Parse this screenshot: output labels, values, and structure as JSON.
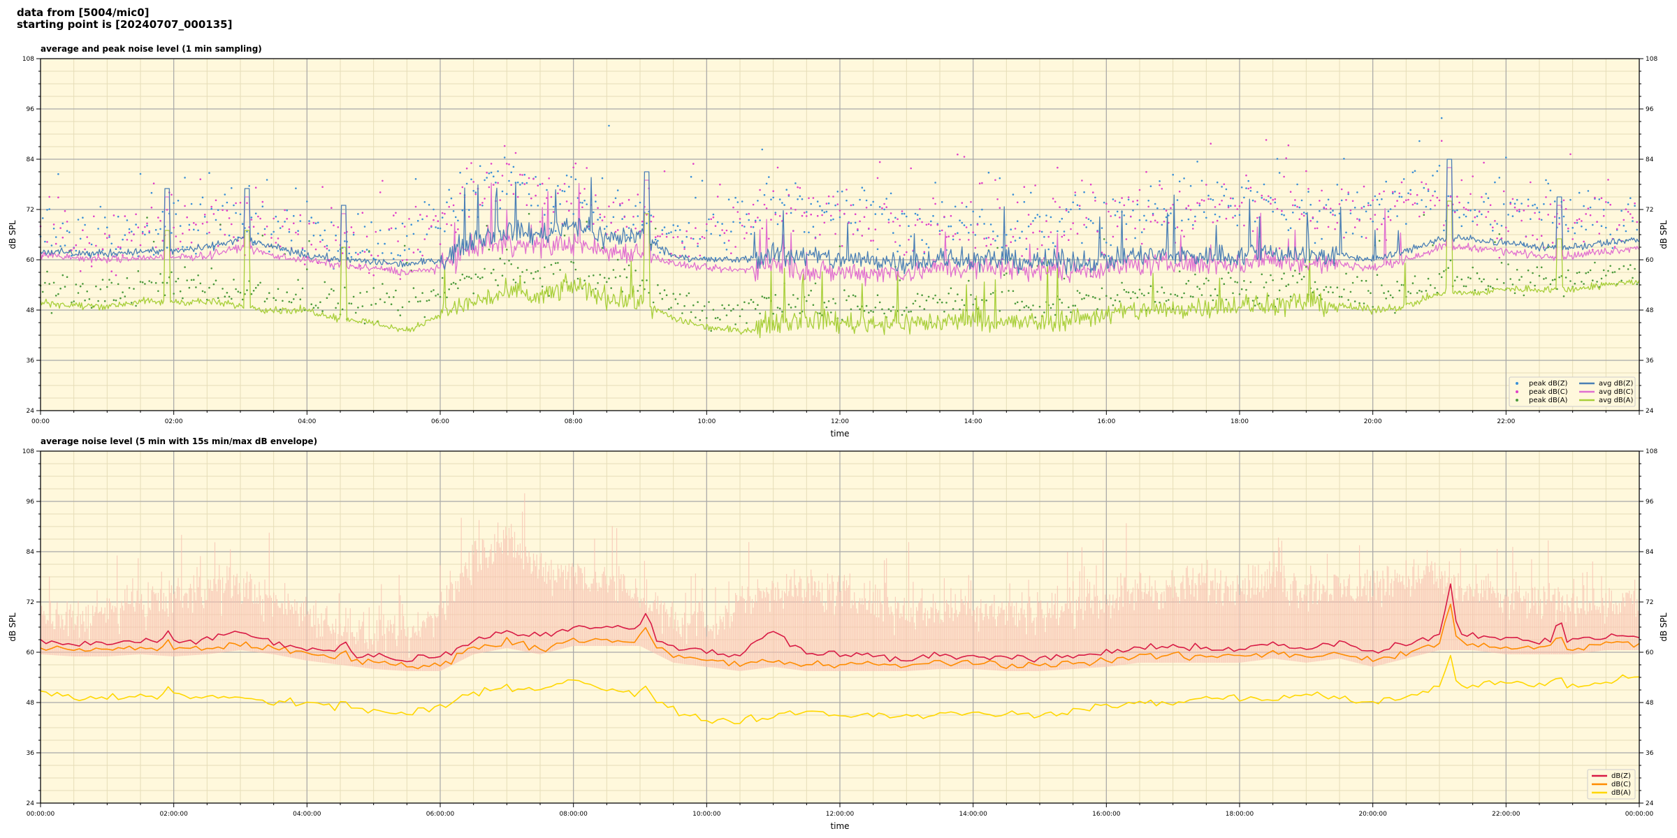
{
  "header": {
    "line1": "data from [5004/mic0]",
    "line2": "starting point is [20240707_000135]"
  },
  "colors": {
    "plot_bg": "#fff8dc",
    "peak_z": "#3a8fd6",
    "peak_c": "#e040c8",
    "peak_a": "#4c9a3c",
    "avg_z": "#4a7fb5",
    "avg_c": "#e070d0",
    "avg_a": "#a8cf3a",
    "dbz": "#d81b45",
    "dbc": "#ff8c00",
    "dba": "#ffd700",
    "envelope": "#f8c0b0"
  },
  "chart_data": [
    {
      "type": "line",
      "title": "average and peak noise level (1 min sampling)",
      "xlabel": "time",
      "ylabel": "dB SPL",
      "ylim": [
        24,
        108
      ],
      "xlim_hours": [
        0,
        24
      ],
      "yticks": [
        24,
        36,
        48,
        60,
        72,
        84,
        96,
        108
      ],
      "xtick_labels": [
        "00:00",
        "02:00",
        "04:00",
        "06:00",
        "08:00",
        "10:00",
        "12:00",
        "14:00",
        "16:00",
        "18:00",
        "20:00",
        "22:00"
      ],
      "grid": true,
      "legend_position": "bottom-right",
      "legend": [
        "peak dB(Z)",
        "peak dB(C)",
        "peak dB(A)",
        "avg dB(Z)",
        "avg dB(C)",
        "avg dB(A)"
      ],
      "anchor_hours": [
        0,
        0.5,
        1,
        1.5,
        2,
        2.5,
        3,
        3.5,
        4,
        4.5,
        5,
        5.5,
        6,
        6.5,
        7,
        7.5,
        8,
        8.5,
        9,
        9.5,
        10,
        10.5,
        11,
        11.5,
        12,
        12.5,
        13,
        13.5,
        14,
        14.5,
        15,
        15.5,
        16,
        16.5,
        17,
        17.5,
        18,
        18.5,
        19,
        19.5,
        20,
        20.5,
        21,
        21.5,
        22,
        22.5,
        23,
        23.5,
        24
      ],
      "series": [
        {
          "name": "avg dB(Z)",
          "values": [
            62,
            61.5,
            61.5,
            62,
            62,
            63,
            65,
            63,
            61,
            60,
            59.5,
            59,
            60,
            65,
            67,
            66,
            69,
            65,
            66,
            61,
            60,
            60,
            61,
            61,
            60,
            60,
            59.5,
            60,
            60,
            60,
            59.5,
            59.5,
            60,
            61,
            61,
            61,
            61,
            62,
            61,
            61,
            60,
            62,
            65,
            65,
            64,
            63,
            63,
            64,
            65
          ]
        },
        {
          "name": "avg dB(C)",
          "values": [
            61,
            60.5,
            60,
            60.5,
            60.5,
            61,
            63,
            61,
            60,
            58.5,
            58,
            57,
            58,
            63,
            64,
            63,
            64,
            62,
            62,
            59,
            58,
            57.5,
            59,
            57,
            57,
            57,
            57,
            58,
            58,
            58,
            57.5,
            57.5,
            58,
            59,
            59,
            59,
            59,
            60,
            59,
            59,
            58,
            60,
            63,
            63,
            62,
            61,
            61,
            62,
            63
          ]
        },
        {
          "name": "avg dB(A)",
          "values": [
            50,
            49,
            49,
            50,
            50,
            50,
            49,
            48,
            48,
            46,
            45,
            43,
            47,
            50,
            52,
            51,
            54,
            51,
            50,
            46,
            44,
            43,
            45,
            46,
            45,
            45,
            45,
            45,
            46,
            45,
            45,
            46,
            47,
            48,
            48,
            49,
            49,
            49,
            50,
            49,
            48,
            49,
            52,
            52,
            53,
            53,
            53,
            54,
            55
          ]
        },
        {
          "name": "peak dB(Z)",
          "values": [
            66,
            65,
            65,
            67,
            68,
            70,
            70,
            68,
            66,
            65,
            64,
            64,
            70,
            76,
            78,
            75,
            74,
            72,
            71,
            66,
            65,
            70,
            72,
            72,
            71,
            70,
            68,
            68,
            69,
            68,
            68,
            69,
            70,
            72,
            72,
            73,
            73,
            74,
            72,
            72,
            73,
            74,
            74,
            72,
            71,
            70,
            70,
            70,
            71
          ]
        },
        {
          "name": "peak dB(C)",
          "values": [
            64,
            63,
            64,
            66,
            67,
            69,
            69,
            67,
            65,
            64,
            63,
            63,
            69,
            77,
            80,
            76,
            74,
            71,
            70,
            65,
            64,
            69,
            71,
            71,
            70,
            69,
            67,
            67,
            68,
            67,
            67,
            68,
            69,
            71,
            71,
            72,
            72,
            73,
            71,
            71,
            72,
            73,
            73,
            71,
            70,
            69,
            69,
            69,
            70
          ]
        },
        {
          "name": "peak dB(A)",
          "values": [
            53,
            52,
            52,
            54,
            54,
            54,
            53,
            52,
            51,
            50,
            49,
            48,
            52,
            56,
            58,
            56,
            57,
            55,
            54,
            50,
            48,
            48,
            50,
            50,
            49,
            49,
            49,
            49,
            50,
            49,
            49,
            50,
            51,
            52,
            52,
            53,
            53,
            53,
            54,
            53,
            52,
            53,
            56,
            55,
            56,
            56,
            56,
            57,
            57
          ]
        }
      ],
      "spikes_hours": [
        {
          "h": 1.9,
          "dz": 77
        },
        {
          "h": 3.1,
          "dz": 77
        },
        {
          "h": 4.55,
          "dz": 73
        },
        {
          "h": 9.1,
          "dz": 81
        },
        {
          "h": 21.15,
          "dz": 84
        },
        {
          "h": 22.8,
          "dz": 75
        }
      ]
    },
    {
      "type": "line",
      "title": "average noise level (5 min with 15s min/max dB envelope)",
      "xlabel": "time",
      "ylabel": "dB SPL",
      "ylim": [
        24,
        108
      ],
      "xlim_hours": [
        0,
        24
      ],
      "yticks": [
        24,
        36,
        48,
        60,
        72,
        84,
        96,
        108
      ],
      "xtick_labels": [
        "00:00:00",
        "02:00:00",
        "04:00:00",
        "06:00:00",
        "08:00:00",
        "10:00:00",
        "12:00:00",
        "14:00:00",
        "16:00:00",
        "18:00:00",
        "20:00:00",
        "22:00:00",
        "00:00:00"
      ],
      "grid": true,
      "legend_position": "bottom-right",
      "legend": [
        "dB(Z)",
        "dB(C)",
        "dB(A)"
      ],
      "anchor_hours": [
        0,
        0.5,
        1,
        1.5,
        2,
        2.5,
        3,
        3.5,
        4,
        4.5,
        5,
        5.5,
        6,
        6.5,
        7,
        7.5,
        8,
        8.5,
        9,
        9.5,
        10,
        10.5,
        11,
        11.5,
        12,
        12.5,
        13,
        13.5,
        14,
        14.5,
        15,
        15.5,
        16,
        16.5,
        17,
        17.5,
        18,
        18.5,
        19,
        19.5,
        20,
        20.5,
        21,
        21.5,
        22,
        22.5,
        23,
        23.5,
        24
      ],
      "series": [
        {
          "name": "dB(Z)",
          "values": [
            62.5,
            62,
            62,
            62.5,
            62,
            63,
            65,
            62.5,
            61,
            60,
            59,
            58.5,
            59,
            63,
            65,
            64,
            66,
            66,
            66,
            61,
            60,
            59.5,
            65,
            60,
            60,
            59,
            58.5,
            59,
            59,
            58.5,
            58.5,
            59,
            60,
            61,
            61,
            61,
            61,
            62,
            61,
            62,
            60,
            62,
            64,
            64,
            63,
            63,
            63,
            64,
            64
          ]
        },
        {
          "name": "dB(C)",
          "values": [
            61,
            60.5,
            60.5,
            61,
            60.5,
            61,
            62,
            61,
            59.5,
            58.5,
            57.5,
            57,
            57,
            61,
            62.5,
            61,
            63,
            63,
            63,
            59,
            58,
            57,
            58,
            57,
            57,
            57,
            57,
            57.5,
            57.5,
            57,
            57,
            57.5,
            58,
            59,
            59,
            59,
            59,
            60,
            59,
            60,
            58,
            60,
            62,
            62,
            61,
            61,
            61,
            62,
            62
          ]
        },
        {
          "name": "dB(A)",
          "values": [
            50.5,
            49,
            49,
            49.5,
            49.5,
            49.5,
            49,
            48,
            48,
            47,
            46,
            45,
            47,
            50,
            52,
            51,
            54,
            51,
            50,
            46,
            44,
            43.5,
            45,
            46,
            45,
            45,
            45,
            45,
            46,
            45,
            45,
            46,
            47,
            48,
            48,
            49,
            49,
            49,
            50,
            49,
            48,
            49,
            52,
            52,
            53,
            52,
            52,
            53,
            54
          ]
        },
        {
          "name": "envelope max",
          "values": [
            68,
            68,
            69,
            72,
            73,
            75,
            76,
            72,
            70,
            66,
            64,
            63,
            70,
            83,
            86,
            80,
            79,
            77,
            74,
            67,
            65,
            72,
            75,
            75,
            74,
            72,
            70,
            70,
            71,
            70,
            70,
            71,
            73,
            75,
            75,
            76,
            76,
            77,
            75,
            75,
            76,
            78,
            78,
            74,
            73,
            72,
            72,
            72,
            73
          ]
        }
      ],
      "spikes_hours": [
        {
          "h": 1.9,
          "dz": 66
        },
        {
          "h": 4.55,
          "dz": 63
        },
        {
          "h": 9.1,
          "dz": 70
        },
        {
          "h": 21.15,
          "dz": 78
        },
        {
          "h": 22.8,
          "dz": 68
        }
      ]
    }
  ]
}
